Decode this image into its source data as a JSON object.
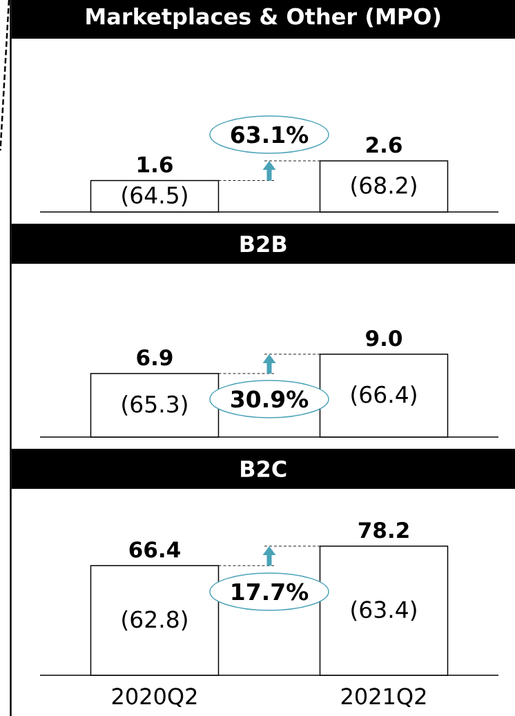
{
  "chart_data": [
    {
      "type": "bar",
      "title": "Marketplaces & Other (MPO)",
      "categories": [
        null,
        null
      ],
      "values": [
        1.6,
        2.6
      ],
      "color": "#ffffff",
      "data_labels": true,
      "annotations": [
        "(64.5)",
        "(68.2)",
        "63.1%"
      ]
    },
    {
      "type": "bar",
      "title": "B2B",
      "categories": [
        null,
        null
      ],
      "values": [
        6.9,
        9.0
      ],
      "color": "#ffffff",
      "value_labels": [
        "6.9",
        "9.0"
      ],
      "annotations": [
        "(65.3)",
        "(66.4)",
        "30.9%"
      ]
    },
    {
      "type": "bar",
      "title": "B2C",
      "categories": [
        "2020Q2",
        "2021Q2"
      ],
      "values": [
        66.4,
        78.2
      ],
      "color": "#ffffff",
      "data_labels": true,
      "annotations": [
        "(62.8)",
        "(63.4)",
        "17.7%"
      ]
    }
  ]
}
